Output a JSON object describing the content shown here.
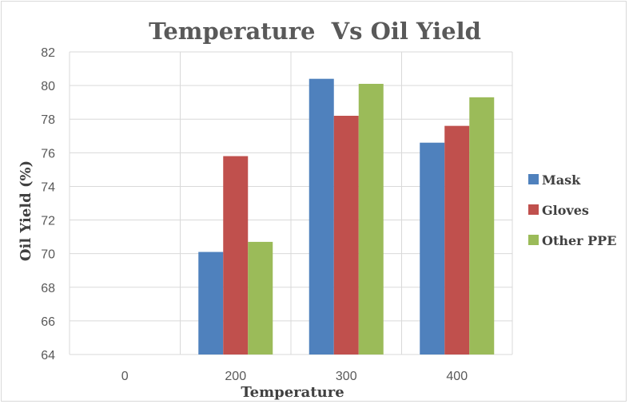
{
  "chart_data": {
    "type": "bar",
    "title": "Temperature  Vs Oil Yield",
    "xlabel": "Temperature",
    "ylabel": "Oil Yield (%)",
    "categories": [
      "0",
      "200",
      "300",
      "400"
    ],
    "ylim": [
      64,
      82
    ],
    "yticks": [
      "64",
      "66",
      "68",
      "70",
      "72",
      "74",
      "76",
      "78",
      "80",
      "82"
    ],
    "grid": true,
    "legend_position": "right",
    "series": [
      {
        "name": "Mask",
        "color": "#4f81bd",
        "values": [
          null,
          70.1,
          80.4,
          76.6
        ]
      },
      {
        "name": "Gloves",
        "color": "#c0504d",
        "values": [
          null,
          75.8,
          78.2,
          77.6
        ]
      },
      {
        "name": "Other PPE",
        "color": "#9bbb59",
        "values": [
          null,
          70.7,
          80.1,
          79.3
        ]
      }
    ]
  }
}
